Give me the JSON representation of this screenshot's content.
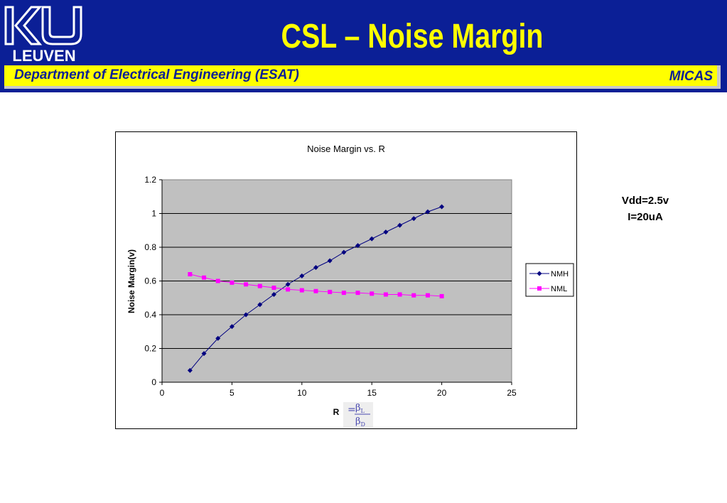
{
  "header": {
    "logo_text": "LEUVEN",
    "title": "CSL – Noise Margin",
    "department": "Department of Electrical Engineering (ESAT)",
    "group": "MICAS"
  },
  "notes": {
    "line1": "Vdd=2.5v",
    "line2": "I=20uA"
  },
  "colors": {
    "header_bg": "#0b1f96",
    "title": "#ffff00",
    "plot_bg": "#c0c0c0",
    "nmh": "#000080",
    "nml": "#ff00ff"
  },
  "chart_data": {
    "type": "line",
    "title": "Noise Margin vs. R",
    "xlabel": "R",
    "xlabel_formula": {
      "equals": "=",
      "numerator": "β",
      "numerator_sub": "L",
      "denominator": "β",
      "denominator_sub": "D"
    },
    "ylabel": "Noise Margin(v)",
    "xlim": [
      0,
      25
    ],
    "ylim": [
      0,
      1.2
    ],
    "xticks": [
      0,
      5,
      10,
      15,
      20,
      25
    ],
    "yticks": [
      0,
      0.2,
      0.4,
      0.6,
      0.8,
      1,
      1.2
    ],
    "xtick_labels": [
      "0",
      "5",
      "10",
      "15",
      "20",
      "25"
    ],
    "ytick_labels": [
      "0",
      "0.2",
      "0.4",
      "0.6",
      "0.8",
      "1",
      "1.2"
    ],
    "grid": "horizontal",
    "legend_position": "right",
    "x": [
      2,
      3,
      4,
      5,
      6,
      7,
      8,
      9,
      10,
      11,
      12,
      13,
      14,
      15,
      16,
      17,
      18,
      19,
      20
    ],
    "series": [
      {
        "name": "NMH",
        "marker": "diamond",
        "color": "#000080",
        "values": [
          0.07,
          0.17,
          0.26,
          0.33,
          0.4,
          0.46,
          0.52,
          0.58,
          0.63,
          0.68,
          0.72,
          0.77,
          0.81,
          0.85,
          0.89,
          0.93,
          0.97,
          1.01,
          1.04
        ]
      },
      {
        "name": "NML",
        "marker": "square",
        "color": "#ff00ff",
        "values": [
          0.64,
          0.62,
          0.6,
          0.59,
          0.58,
          0.57,
          0.56,
          0.55,
          0.545,
          0.54,
          0.535,
          0.53,
          0.53,
          0.525,
          0.52,
          0.52,
          0.515,
          0.515,
          0.51
        ]
      }
    ]
  }
}
